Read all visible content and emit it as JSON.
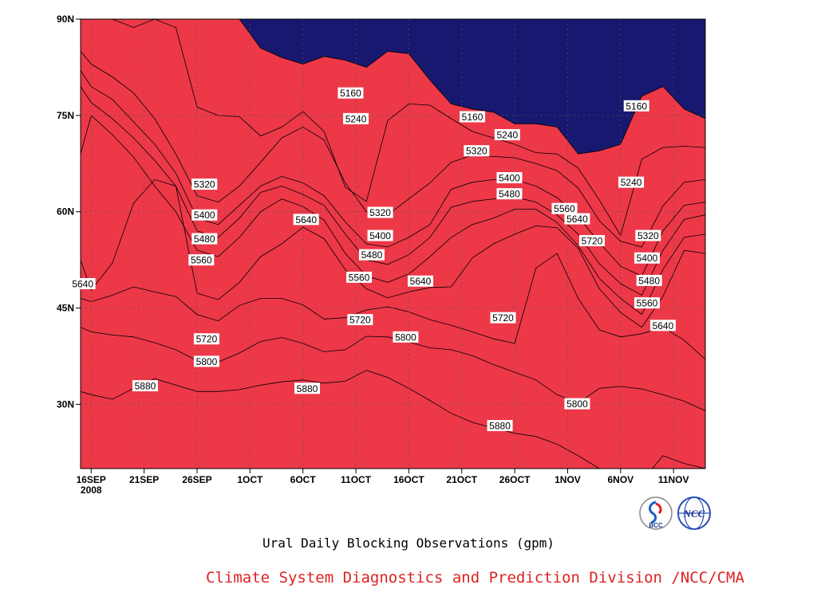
{
  "title": "Ural Daily Blocking Observations (gpm)",
  "credit": "Climate System Diagnostics and Prediction Division /NCC/CMA",
  "credit_color": "#dd2222",
  "logos": [
    {
      "name": "bcc-logo",
      "text": "BCC"
    },
    {
      "name": "ncc-logo",
      "text": "NCC"
    }
  ],
  "chart_data": {
    "type": "contour",
    "x_tick_labels": [
      "16SEP",
      "21SEP",
      "26SEP",
      "1OCT",
      "6OCT",
      "11OCT",
      "16OCT",
      "21OCT",
      "26OCT",
      "1NOV",
      "6NOV",
      "11NOV"
    ],
    "x_sub_label": "2008",
    "x_tick_days": [
      0,
      5,
      10,
      15,
      20,
      25,
      30,
      35,
      40,
      45,
      50,
      55
    ],
    "xlim_days": [
      -1,
      58
    ],
    "y_tick_labels": [
      "30N",
      "45N",
      "60N",
      "75N",
      "90N"
    ],
    "y_tick_values": [
      30,
      45,
      60,
      75,
      90
    ],
    "ylim": [
      20,
      90
    ],
    "grid": "dotted",
    "levels": [
      5160,
      5240,
      5320,
      5400,
      5480,
      5560,
      5640,
      5720,
      5800,
      5880
    ],
    "band_colors": [
      "#181870",
      "#1a1aE0",
      "#4b4bEC",
      "#5a8eE8",
      "#5cc4fa",
      "#fcfc88",
      "#fde3a6",
      "#fca46c",
      "#fb7a48",
      "#f26c7c",
      "#ed3848"
    ],
    "contour_x_days": [
      -1,
      0,
      2,
      4,
      6,
      8,
      10,
      12,
      14,
      16,
      18,
      20,
      22,
      24,
      26,
      28,
      30,
      32,
      34,
      36,
      38,
      40,
      42,
      44,
      46,
      48,
      50,
      52,
      54,
      56,
      58
    ],
    "contours": [
      {
        "value": 5880,
        "lat": [
          32,
          31.5,
          30.8,
          32.5,
          34,
          33,
          32,
          32,
          32.3,
          33,
          33.5,
          33.8,
          33.3,
          33.6,
          35.3,
          34.2,
          32.5,
          30.6,
          28.6,
          27.2,
          26.3,
          25.5,
          25,
          23.8,
          22,
          20,
          19,
          18,
          22,
          20.8,
          20
        ]
      },
      {
        "value": 5800,
        "lat": [
          42,
          41.3,
          40.8,
          40.5,
          39.6,
          38.5,
          36.8,
          36.6,
          38,
          39.8,
          40.4,
          39.5,
          38.2,
          38.5,
          40.6,
          40.5,
          39.7,
          38.8,
          38.5,
          37.6,
          36.2,
          35,
          33.8,
          31.5,
          30.2,
          32.5,
          32.8,
          32.4,
          31.5,
          30.5,
          29
        ]
      },
      {
        "value": 5720,
        "lat": [
          46.5,
          46,
          47,
          48.3,
          47.5,
          46.8,
          44,
          43,
          45.4,
          46.5,
          46.5,
          45.5,
          43.3,
          43.5,
          44.7,
          45.2,
          44.4,
          43.2,
          42.3,
          41.3,
          40.2,
          39.5,
          51.2,
          53.5,
          46.5,
          41.6,
          40.5,
          41,
          42,
          40,
          37
        ]
      },
      {
        "value": 5640,
        "lat": [
          52.5,
          47.8,
          52,
          61.3,
          65,
          64,
          47.3,
          46.3,
          49,
          53,
          55,
          57.6,
          55.8,
          51,
          48,
          46.6,
          47.5,
          48.2,
          48.3,
          52.8,
          55,
          56.5,
          57.8,
          57.5,
          54.3,
          48,
          44.3,
          42,
          46.8,
          54,
          53.5
        ]
      },
      {
        "value": 5560,
        "lat": [
          69,
          75,
          72,
          68.5,
          64,
          60,
          54,
          53,
          56,
          60,
          62,
          60.8,
          58.7,
          53.5,
          50,
          49,
          50.3,
          53,
          56,
          58,
          59,
          60.4,
          60.4,
          58.3,
          54.7,
          49.6,
          46.5,
          44,
          51,
          56,
          56.5
        ]
      },
      {
        "value": 5480,
        "lat": [
          79.5,
          77,
          74.5,
          71.5,
          68,
          64,
          57,
          56,
          59,
          63,
          64,
          62.7,
          61,
          56.5,
          52.5,
          51.8,
          53.3,
          56,
          60.7,
          61.6,
          62,
          62.3,
          61.5,
          59.5,
          56.5,
          51.9,
          48.8,
          47,
          54,
          58.8,
          59.5
        ]
      },
      {
        "value": 5400,
        "lat": [
          82,
          79.5,
          77.5,
          74,
          70.5,
          66,
          59,
          58,
          61,
          64,
          65.5,
          64.5,
          62.5,
          58.4,
          55,
          54.5,
          56,
          58,
          63.5,
          64.6,
          65,
          65,
          64,
          62.2,
          59.2,
          55.2,
          51.5,
          50,
          57,
          61,
          61.5
        ]
      },
      {
        "value": 5320,
        "lat": [
          85,
          83,
          81,
          78.5,
          74.5,
          69,
          62.5,
          61.5,
          64,
          67.7,
          71.5,
          73.2,
          71.2,
          64.5,
          60,
          59.5,
          62,
          64.5,
          67.7,
          68.8,
          68.6,
          68.4,
          67.5,
          66.4,
          63.7,
          58.6,
          55.4,
          54.5,
          60.9,
          64.6,
          65
        ]
      },
      {
        "value": 5240,
        "lat": [
          90,
          90,
          90,
          88.7,
          90,
          88.7,
          76.3,
          75,
          74.8,
          71.8,
          73.2,
          75.6,
          72.5,
          63.8,
          61.6,
          74.2,
          76.8,
          76.6,
          74.5,
          72.5,
          71.5,
          70.5,
          69.2,
          69,
          66.8,
          61.8,
          56.3,
          68.2,
          70,
          70.2,
          70
        ]
      },
      {
        "value": 5160,
        "lat": [
          null,
          null,
          null,
          null,
          null,
          null,
          null,
          null,
          90,
          85.5,
          84,
          83,
          84.2,
          83.6,
          82.5,
          85,
          84.6,
          80.5,
          76.8,
          76,
          75.5,
          73.7,
          73.7,
          73.2,
          69,
          69.5,
          70.5,
          78,
          79.5,
          76,
          74.5
        ]
      }
    ],
    "contour_labels": [
      {
        "text": "5160",
        "day": 24.5,
        "lat": 78.5
      },
      {
        "text": "5240",
        "day": 25,
        "lat": 74.5
      },
      {
        "text": "5160",
        "day": 36,
        "lat": 74.8
      },
      {
        "text": "5240",
        "day": 39.3,
        "lat": 72
      },
      {
        "text": "5320",
        "day": 36.4,
        "lat": 69.5
      },
      {
        "text": "5160",
        "day": 51.5,
        "lat": 76.5
      },
      {
        "text": "5240",
        "day": 51,
        "lat": 64.6
      },
      {
        "text": "5320",
        "day": 10.7,
        "lat": 64.3
      },
      {
        "text": "5320",
        "day": 27.3,
        "lat": 59.9
      },
      {
        "text": "5400",
        "day": 39.5,
        "lat": 65.3
      },
      {
        "text": "5480",
        "day": 39.5,
        "lat": 62.8
      },
      {
        "text": "5320",
        "day": 52.6,
        "lat": 56.3
      },
      {
        "text": "5400",
        "day": 10.7,
        "lat": 59.5
      },
      {
        "text": "5480",
        "day": 10.7,
        "lat": 55.8
      },
      {
        "text": "5560",
        "day": 10.4,
        "lat": 52.5
      },
      {
        "text": "5640",
        "day": 20.3,
        "lat": 58.8
      },
      {
        "text": "5400",
        "day": 27.3,
        "lat": 56.3
      },
      {
        "text": "5480",
        "day": 26.5,
        "lat": 53.3
      },
      {
        "text": "5560",
        "day": 25.3,
        "lat": 49.8
      },
      {
        "text": "5560",
        "day": 44.7,
        "lat": 60.5
      },
      {
        "text": "5640",
        "day": 45.9,
        "lat": 58.9
      },
      {
        "text": "5720",
        "day": 47.3,
        "lat": 55.5
      },
      {
        "text": "5400",
        "day": 52.5,
        "lat": 52.8
      },
      {
        "text": "5480",
        "day": 52.7,
        "lat": 49.3
      },
      {
        "text": "5560",
        "day": 52.5,
        "lat": 45.8
      },
      {
        "text": "5640",
        "day": 54,
        "lat": 42.3
      },
      {
        "text": "5640",
        "day": -0.8,
        "lat": 48.8
      },
      {
        "text": "5640",
        "day": 31.1,
        "lat": 49.2
      },
      {
        "text": "5720",
        "day": 10.9,
        "lat": 40.2
      },
      {
        "text": "5720",
        "day": 25.4,
        "lat": 43.2
      },
      {
        "text": "5720",
        "day": 38.9,
        "lat": 43.5
      },
      {
        "text": "5800",
        "day": 10.9,
        "lat": 36.7
      },
      {
        "text": "5800",
        "day": 29.7,
        "lat": 40.5
      },
      {
        "text": "5880",
        "day": 5.1,
        "lat": 32.9
      },
      {
        "text": "5880",
        "day": 20.4,
        "lat": 32.5
      },
      {
        "text": "5880",
        "day": 38.6,
        "lat": 26.7
      },
      {
        "text": "5800",
        "day": 45.9,
        "lat": 30.1
      }
    ]
  }
}
